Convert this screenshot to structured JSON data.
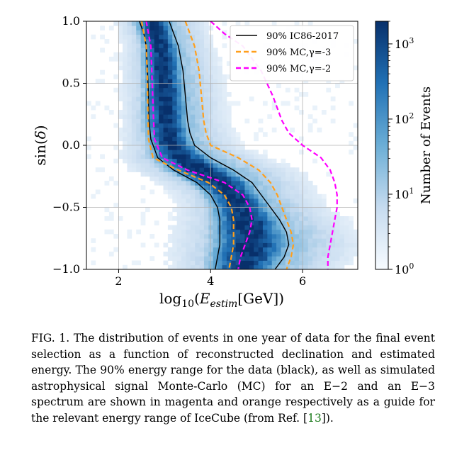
{
  "chart_data": {
    "type": "heatmap",
    "xlabel": "log10(E_estim[GeV])",
    "ylabel": "sin(δ)",
    "xlim": [
      1.3,
      7.2
    ],
    "ylim": [
      -1.0,
      1.0
    ],
    "x_ticks": [
      "2",
      "4",
      "6"
    ],
    "y_ticks": [
      "−1.0",
      "−0.5",
      "0.0",
      "0.5",
      "1.0"
    ],
    "grid": true,
    "legend_position": "top-right",
    "colorbar": {
      "label": "Number of Events",
      "scale": "log",
      "range": [
        1,
        2000
      ],
      "ticks": [
        "10^0",
        "10^1",
        "10^2",
        "10^3"
      ],
      "colors": [
        "#f7fbff",
        "#c6dbef",
        "#6baed6",
        "#2171b5",
        "#08306b"
      ]
    },
    "series": [
      {
        "name": "90% IC86-2017",
        "color": "#000000",
        "style": "solid",
        "lower": {
          "y": [
            1.0,
            0.9,
            0.8,
            0.6,
            0.4,
            0.2,
            0.05,
            -0.1,
            -0.2,
            -0.3,
            -0.4,
            -0.5,
            -0.6,
            -0.7,
            -0.8,
            -0.9,
            -1.0
          ],
          "x": [
            2.45,
            2.55,
            2.6,
            2.63,
            2.65,
            2.66,
            2.7,
            2.85,
            3.2,
            3.7,
            4.0,
            4.15,
            4.2,
            4.2,
            4.2,
            4.15,
            4.1
          ]
        },
        "upper": {
          "y": [
            1.0,
            0.9,
            0.8,
            0.6,
            0.4,
            0.2,
            0.1,
            0.0,
            -0.1,
            -0.2,
            -0.3,
            -0.4,
            -0.5,
            -0.6,
            -0.7,
            -0.8,
            -0.9,
            -1.0
          ],
          "x": [
            3.1,
            3.2,
            3.3,
            3.4,
            3.45,
            3.5,
            3.55,
            3.65,
            4.0,
            4.5,
            4.9,
            5.1,
            5.3,
            5.5,
            5.65,
            5.7,
            5.6,
            5.4
          ]
        }
      },
      {
        "name": "90% MC,γ=-3",
        "color": "#ff9f1c",
        "style": "dashed",
        "lower": {
          "y": [
            1.0,
            0.9,
            0.8,
            0.6,
            0.4,
            0.2,
            0.05,
            -0.1,
            -0.2,
            -0.3,
            -0.4,
            -0.5,
            -0.6,
            -0.7,
            -0.8,
            -0.9,
            -1.0
          ],
          "x": [
            2.5,
            2.55,
            2.6,
            2.62,
            2.63,
            2.64,
            2.65,
            2.75,
            3.3,
            3.95,
            4.3,
            4.45,
            4.5,
            4.5,
            4.5,
            4.45,
            4.4
          ]
        },
        "upper": {
          "y": [
            1.0,
            0.9,
            0.8,
            0.6,
            0.4,
            0.2,
            0.1,
            0.0,
            -0.1,
            -0.2,
            -0.3,
            -0.4,
            -0.5,
            -0.6,
            -0.7,
            -0.8,
            -0.9,
            -1.0
          ],
          "x": [
            3.45,
            3.55,
            3.65,
            3.75,
            3.8,
            3.85,
            3.9,
            4.0,
            4.6,
            5.05,
            5.3,
            5.45,
            5.55,
            5.65,
            5.75,
            5.8,
            5.75,
            5.65
          ]
        }
      },
      {
        "name": "90% MC,γ=-2",
        "color": "#ff00ff",
        "style": "dashed",
        "lower": {
          "y": [
            1.0,
            0.9,
            0.8,
            0.6,
            0.4,
            0.2,
            0.05,
            -0.1,
            -0.2,
            -0.3,
            -0.4,
            -0.5,
            -0.6,
            -0.7,
            -0.8,
            -0.9,
            -1.0
          ],
          "x": [
            2.6,
            2.65,
            2.7,
            2.72,
            2.74,
            2.76,
            2.78,
            2.95,
            3.5,
            4.3,
            4.7,
            4.85,
            4.9,
            4.85,
            4.75,
            4.65,
            4.6
          ]
        },
        "upper": {
          "y": [
            1.0,
            0.9,
            0.8,
            0.6,
            0.4,
            0.2,
            0.1,
            0.0,
            -0.1,
            -0.2,
            -0.3,
            -0.4,
            -0.5,
            -0.6,
            -0.7,
            -0.8,
            -0.9,
            -1.0
          ],
          "x": [
            4.0,
            4.3,
            4.7,
            5.1,
            5.35,
            5.55,
            5.7,
            6.0,
            6.4,
            6.6,
            6.7,
            6.75,
            6.75,
            6.7,
            6.65,
            6.6,
            6.55,
            6.55
          ]
        }
      }
    ]
  },
  "caption": {
    "prefix": "FIG. 1.",
    "text_before_ref": " The distribution of events in one year of data for the final event selection as a function of reconstructed declination and estimated energy.  The 90% energy range for the data (black), as well as simulated astrophysical signal Monte-Carlo (MC) for an E−2 and an E−3 spectrum are shown in magenta and orange respectively as a guide for the relevant energy range of IceCube (from Ref. [",
    "ref": "13",
    "text_after_ref": "])."
  }
}
